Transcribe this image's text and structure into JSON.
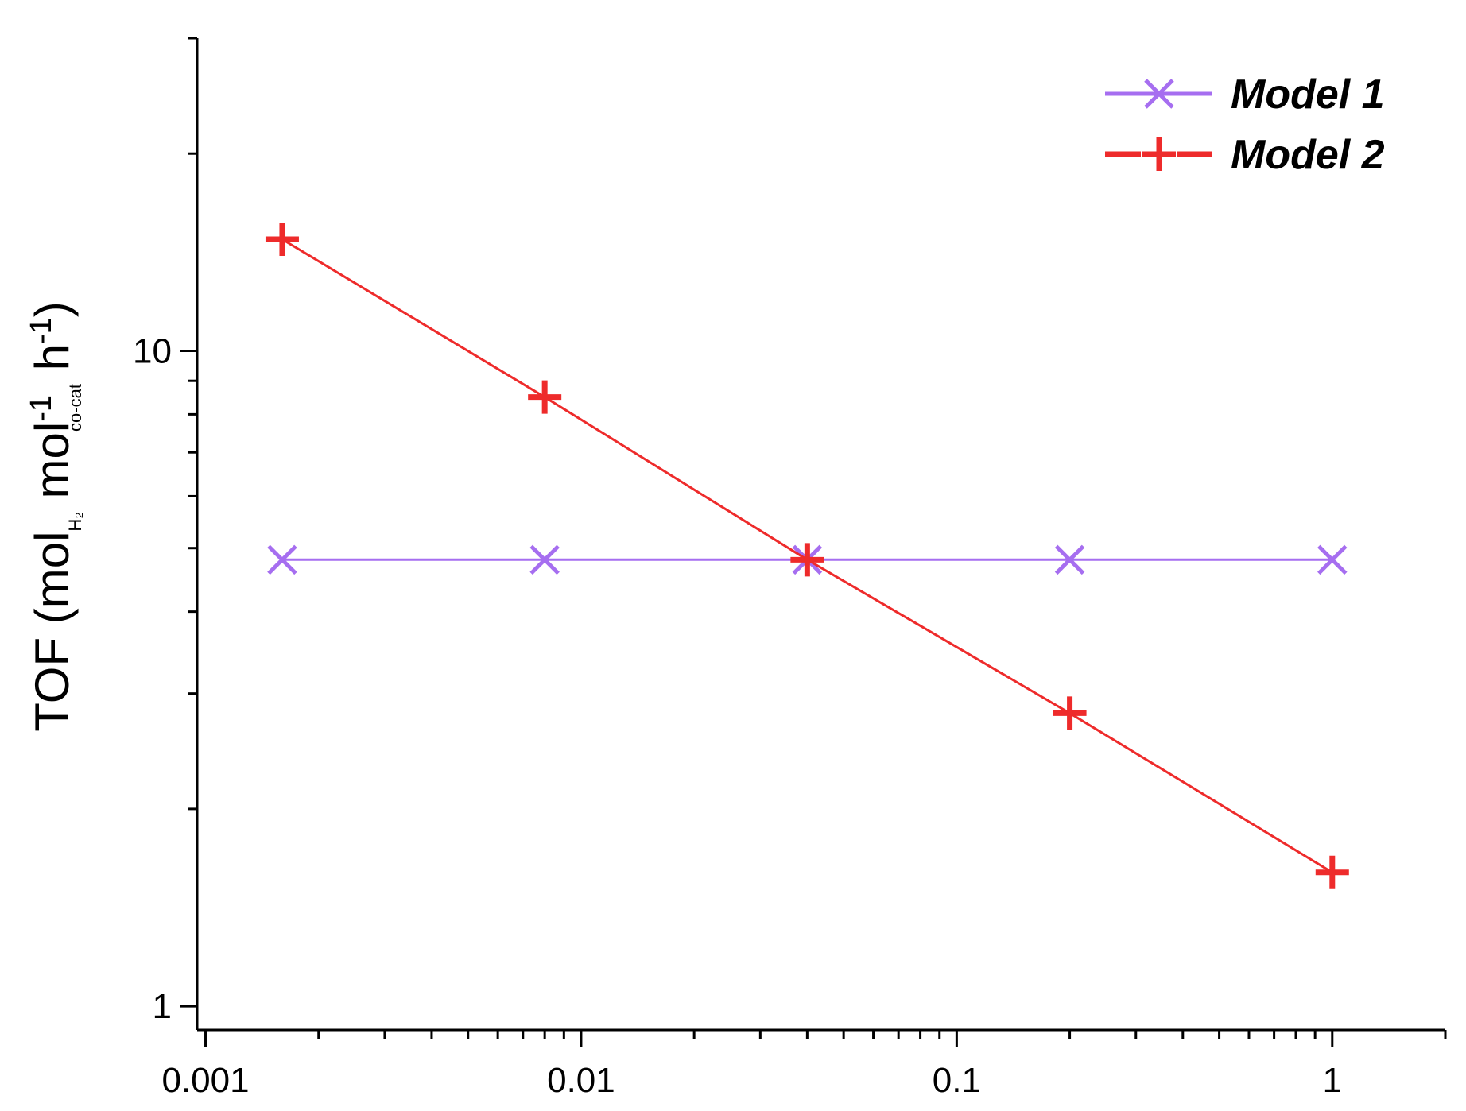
{
  "chart_data": {
    "type": "line",
    "title": "",
    "xlabel": "",
    "ylabel": {
      "prefix": "TOF (mol",
      "sub1": "H₂",
      "mid": " mol",
      "sup1": "-1",
      "sub2": "co-cat",
      "mid2": " h",
      "sup2": "-1",
      "suffix": ")"
    },
    "x_scale": "log",
    "y_scale": "log",
    "xlim": [
      0.00095,
      2
    ],
    "ylim": [
      0.92,
      30
    ],
    "x_ticks": [
      0.001,
      0.01,
      0.1,
      1
    ],
    "x_tick_labels": [
      "0.001",
      "0.01",
      "0.1",
      "1"
    ],
    "y_ticks": [
      1,
      10
    ],
    "y_tick_labels": [
      "1",
      "10"
    ],
    "legend_position": "top-right",
    "series": [
      {
        "name": "Model 1",
        "marker": "x",
        "color": "#a66ef0",
        "x": [
          0.0016,
          0.008,
          0.04,
          0.2,
          1
        ],
        "y": [
          4.8,
          4.8,
          4.8,
          4.8,
          4.8
        ]
      },
      {
        "name": "Model 2",
        "marker": "plus",
        "color": "#ee2b2b",
        "x": [
          0.0016,
          0.008,
          0.04,
          0.2,
          1
        ],
        "y": [
          14.8,
          8.5,
          4.8,
          2.8,
          1.6
        ]
      }
    ]
  }
}
